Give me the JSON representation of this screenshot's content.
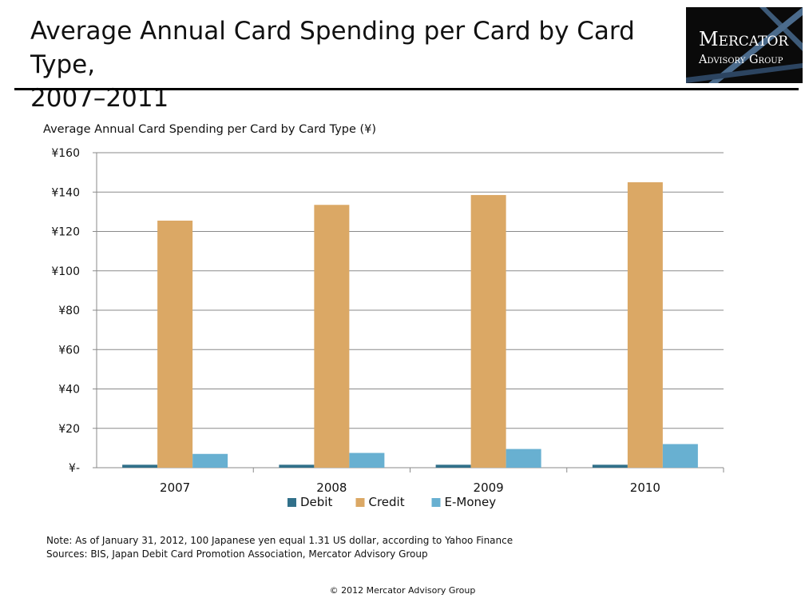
{
  "slide": {
    "title_line1": "Average Annual Card Spending per Card by Card Type,",
    "title_line2": "2007–2011",
    "logo_line1": "Mercator",
    "logo_line2": "Advisory Group",
    "note": "Note: As of January 31, 2012, 100 Japanese yen equal 1.31 US dollar, according to Yahoo Finance",
    "sources": "Sources: BIS, Japan Debit Card Promotion Association, Mercator Advisory Group",
    "copyright": "© 2012 Mercator Advisory Group"
  },
  "chart_data": {
    "type": "bar",
    "title": "Average Annual Card Spending per Card by Card Type (¥)",
    "categories": [
      "2007",
      "2008",
      "2009",
      "2010"
    ],
    "series": [
      {
        "name": "Debit",
        "color": "#31708a",
        "values": [
          1.5,
          1.5,
          1.5,
          1.5
        ]
      },
      {
        "name": "Credit",
        "color": "#dba865",
        "values": [
          125.5,
          133.5,
          138.5,
          145
        ]
      },
      {
        "name": "E-Money",
        "color": "#68b0d1",
        "values": [
          7,
          7.5,
          9.5,
          12
        ]
      }
    ],
    "ylim": [
      0,
      160
    ],
    "yticks": [
      0,
      20,
      40,
      60,
      80,
      100,
      120,
      140,
      160
    ],
    "ytick_labels": [
      "¥-",
      "¥20",
      "¥40",
      "¥60",
      "¥80",
      "¥100",
      "¥120",
      "¥140",
      "¥160"
    ],
    "grid": true,
    "legend_position": "bottom"
  }
}
